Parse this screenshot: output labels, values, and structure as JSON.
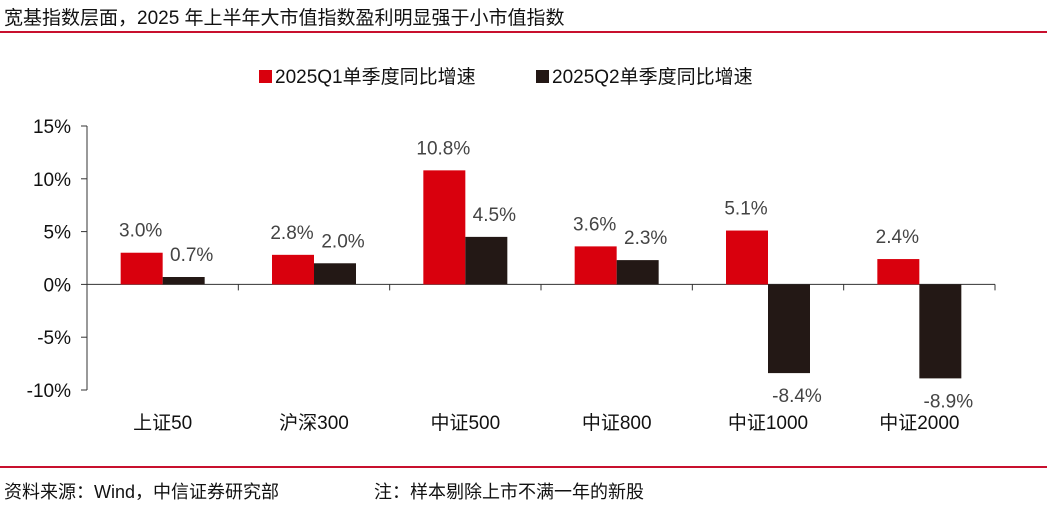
{
  "title": "宽基指数层面，2025 年上半年大市值指数盈利明显强于小市值指数",
  "source": "资料来源：Wind，中信证券研究部",
  "note": "注：样本剔除上市不满一年的新股",
  "colors": {
    "q1": "#d9000d",
    "q2": "#231815",
    "rule": "#c8102e"
  },
  "chart_data": {
    "type": "bar",
    "categories": [
      "上证50",
      "沪深300",
      "中证500",
      "中证800",
      "中证1000",
      "中证2000"
    ],
    "series": [
      {
        "name": "2025Q1单季度同比增速",
        "values": [
          3.0,
          2.8,
          10.8,
          3.6,
          5.1,
          2.4
        ],
        "labels": [
          "3.0%",
          "2.8%",
          "10.8%",
          "3.6%",
          "5.1%",
          "2.4%"
        ]
      },
      {
        "name": "2025Q2单季度同比增速",
        "values": [
          0.7,
          2.0,
          4.5,
          2.3,
          -8.4,
          -8.9
        ],
        "labels": [
          "0.7%",
          "2.0%",
          "4.5%",
          "2.3%",
          "-8.4%",
          "-8.9%"
        ]
      }
    ],
    "yticks": [
      15,
      10,
      5,
      0,
      -5,
      -10
    ],
    "ytick_labels": [
      "15%",
      "10%",
      "5%",
      "0%",
      "-5%",
      "-10%"
    ],
    "ylim": [
      -10,
      15
    ],
    "legend_position": "top",
    "grid": false
  }
}
